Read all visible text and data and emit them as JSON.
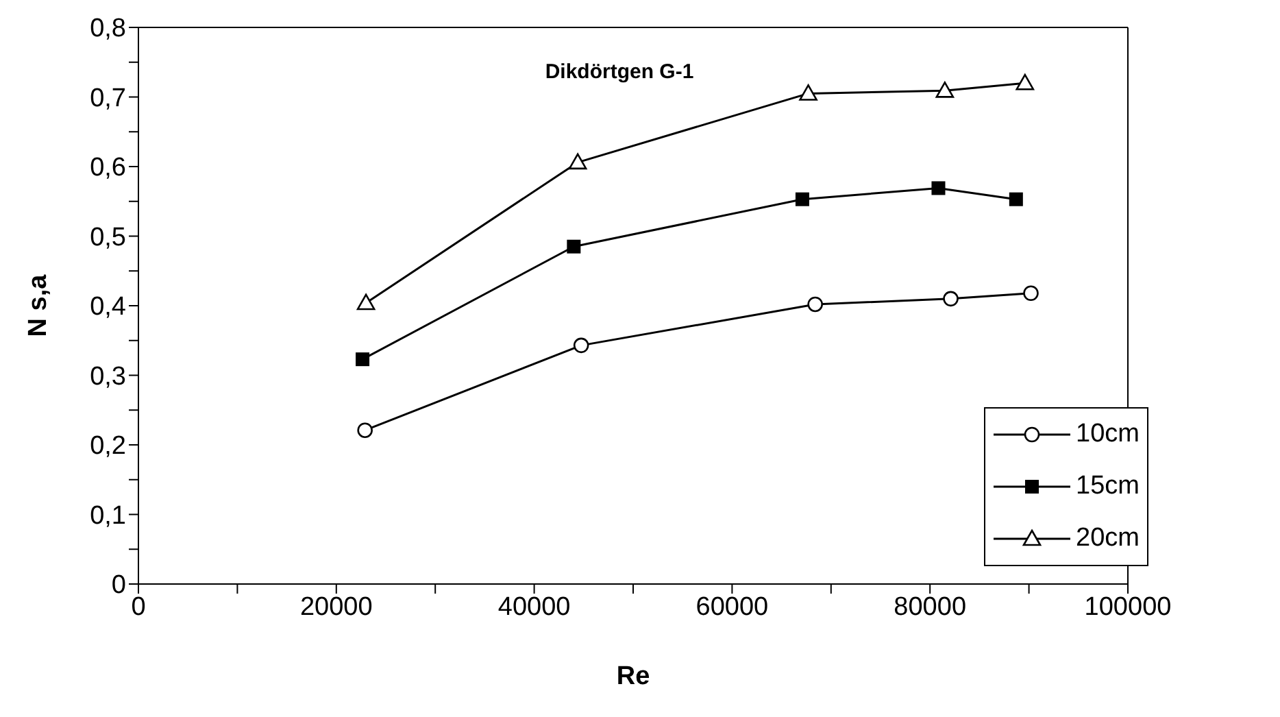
{
  "chart_data": {
    "type": "line",
    "title": "Dikdörtgen G-1",
    "xlabel": "Re",
    "ylabel": "N s,a",
    "xlim": [
      0,
      100000
    ],
    "xticks": [
      0,
      {
        "value": 10000,
        "label": null
      },
      20000,
      {
        "value": 30000,
        "label": null
      },
      40000,
      {
        "value": 50000,
        "label": null
      },
      60000,
      {
        "value": 70000,
        "label": null
      },
      80000,
      {
        "value": 90000,
        "label": null
      },
      100000
    ],
    "ylim": [
      0,
      0.8
    ],
    "yticks": [
      {
        "value": 0,
        "label": "0"
      },
      {
        "value": 0.05,
        "label": null
      },
      {
        "value": 0.1,
        "label": "0,1"
      },
      {
        "value": 0.15,
        "label": null
      },
      {
        "value": 0.2,
        "label": "0,2"
      },
      {
        "value": 0.25,
        "label": null
      },
      {
        "value": 0.3,
        "label": "0,3"
      },
      {
        "value": 0.35,
        "label": null
      },
      {
        "value": 0.4,
        "label": "0,4"
      },
      {
        "value": 0.45,
        "label": null
      },
      {
        "value": 0.5,
        "label": "0,5"
      },
      {
        "value": 0.55,
        "label": null
      },
      {
        "value": 0.6,
        "label": "0,6"
      },
      {
        "value": 0.65,
        "label": null
      },
      {
        "value": 0.7,
        "label": "0,7"
      },
      {
        "value": 0.75,
        "label": null
      },
      {
        "value": 0.8,
        "label": "0,8"
      }
    ],
    "grid": false,
    "legend": "bottom right",
    "line_style": "solid",
    "series": [
      {
        "name": "10cm",
        "color": "#000000",
        "marker": "circle",
        "x": [
          22900,
          44750,
          68400,
          82100,
          90200
        ],
        "values": [
          0.221,
          0.343,
          0.402,
          0.41,
          0.418
        ]
      },
      {
        "name": "15cm",
        "color": "#000000",
        "marker": "square",
        "x": [
          22650,
          44000,
          67100,
          80850,
          88700
        ],
        "values": [
          0.323,
          0.485,
          0.553,
          0.569,
          0.553
        ]
      },
      {
        "name": "20cm",
        "color": "#000000",
        "marker": "triangle",
        "x": [
          23000,
          44400,
          67700,
          81500,
          89600
        ],
        "values": [
          0.404,
          0.606,
          0.705,
          0.709,
          0.72
        ]
      }
    ]
  }
}
